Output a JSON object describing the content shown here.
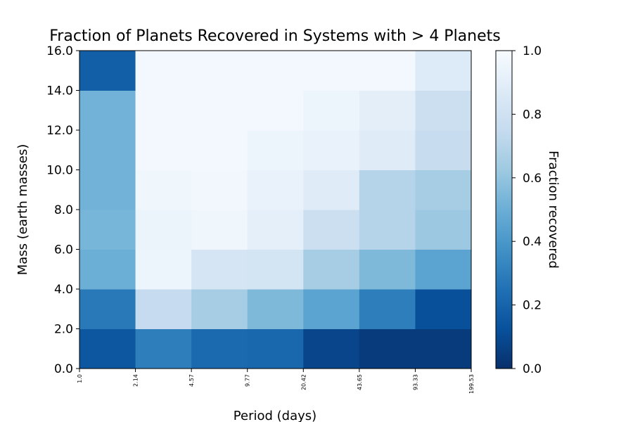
{
  "chart_data": {
    "type": "heatmap",
    "title": "Fraction of Planets Recovered in Systems with > 4 Planets",
    "xlabel": "Period (days)",
    "ylabel": "Mass (earth masses)",
    "x_edges": [
      "1.0",
      "2.14",
      "4.57",
      "9.77",
      "20.42",
      "43.65",
      "93.33",
      "199.53"
    ],
    "y_edges": [
      "0.0",
      "2.0",
      "4.0",
      "6.0",
      "8.0",
      "10.0",
      "12.0",
      "14.0",
      "16.0"
    ],
    "values": [
      [
        0.15,
        0.3,
        0.22,
        0.21,
        0.08,
        0.04,
        0.04
      ],
      [
        0.28,
        0.75,
        0.65,
        0.55,
        0.45,
        0.3,
        0.12
      ],
      [
        0.5,
        0.95,
        0.83,
        0.82,
        0.65,
        0.55,
        0.45
      ],
      [
        0.53,
        0.94,
        0.96,
        0.91,
        0.78,
        0.7,
        0.62
      ],
      [
        0.52,
        0.96,
        0.97,
        0.93,
        0.88,
        0.7,
        0.65
      ],
      [
        0.52,
        0.98,
        0.98,
        0.95,
        0.93,
        0.88,
        0.76
      ],
      [
        0.52,
        0.98,
        0.98,
        0.98,
        0.95,
        0.9,
        0.78
      ],
      [
        0.18,
        0.98,
        0.98,
        0.98,
        0.98,
        0.98,
        0.87
      ]
    ],
    "colorbar": {
      "label": "Fraction recovered",
      "range": [
        0.0,
        1.0
      ],
      "ticks": [
        "0.0",
        "0.2",
        "0.4",
        "0.6",
        "0.8",
        "1.0"
      ],
      "colormap": "Blues_r"
    }
  }
}
